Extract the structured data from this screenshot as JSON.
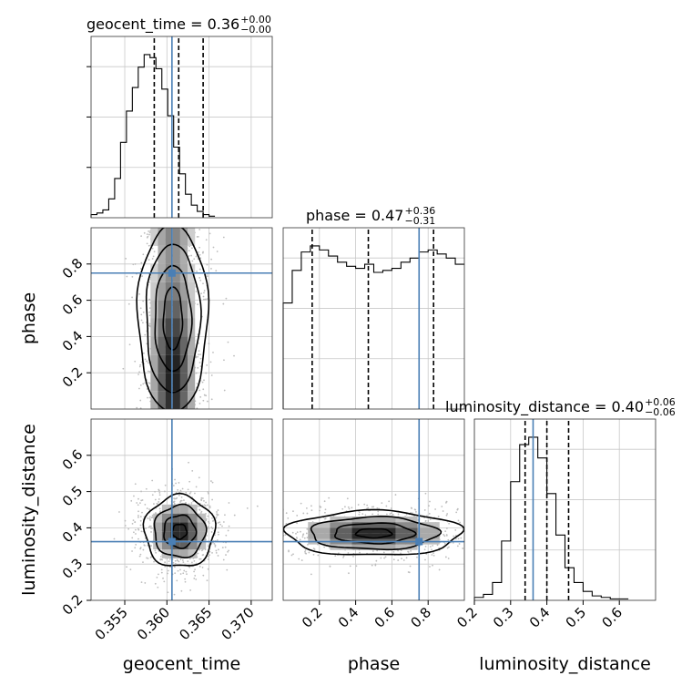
{
  "chart_data": {
    "type": "corner",
    "parameters": [
      "geocent_time",
      "phase",
      "luminosity_distance"
    ],
    "truths": {
      "geocent_time": 0.3606,
      "phase": 0.75,
      "luminosity_distance": 0.362
    },
    "truth_color": "#4a7fb5",
    "titles": [
      {
        "name": "geocent_time",
        "median": "0.36",
        "plus": "+0.00",
        "minus": "−0.00"
      },
      {
        "name": "phase",
        "median": "0.47",
        "plus": "+0.36",
        "minus": "−0.31"
      },
      {
        "name": "luminosity_distance",
        "median": "0.40",
        "plus": "+0.06",
        "minus": "−0.06"
      }
    ],
    "xlabels": [
      "geocent_time",
      "phase",
      "luminosity_distance"
    ],
    "ylabels": [
      "",
      "phase",
      "luminosity_distance"
    ],
    "ranges": {
      "geocent_time": [
        0.351,
        0.3725
      ],
      "phase": [
        0.0,
        1.0
      ],
      "luminosity_distance": [
        0.2,
        0.7
      ]
    },
    "ticks": {
      "geocent_time": [
        "0.355",
        "0.360",
        "0.365",
        "0.370"
      ],
      "phase": [
        "0.2",
        "0.4",
        "0.6",
        "0.8"
      ],
      "luminosity_distance": [
        "0.2",
        "0.3",
        "0.4",
        "0.5",
        "0.6"
      ]
    },
    "quantiles": {
      "geocent_time": [
        0.3585,
        0.3614,
        0.3643
      ],
      "phase": [
        0.16,
        0.47,
        0.83
      ],
      "luminosity_distance": [
        0.34,
        0.4,
        0.46
      ]
    },
    "hist_geocent_time": {
      "edges_start": 0.351,
      "bin_width": 0.0007,
      "counts": [
        2,
        3,
        5,
        12,
        25,
        48,
        68,
        83,
        96,
        104,
        102,
        95,
        82,
        65,
        45,
        28,
        15,
        8,
        4,
        2,
        1
      ]
    },
    "hist_phase": {
      "edges_start": 0.0,
      "bin_width": 0.05,
      "counts": [
        52,
        68,
        77,
        80,
        78,
        75,
        72,
        70,
        69,
        71,
        67,
        68,
        69,
        72,
        74,
        77,
        78,
        76,
        74,
        71
      ]
    },
    "hist_luminosity_distance": {
      "edges_start": 0.2,
      "bin_width": 0.025,
      "counts": [
        2,
        4,
        12,
        40,
        80,
        105,
        110,
        96,
        72,
        44,
        22,
        12,
        6,
        3,
        2,
        1,
        1
      ]
    },
    "grid": true
  }
}
